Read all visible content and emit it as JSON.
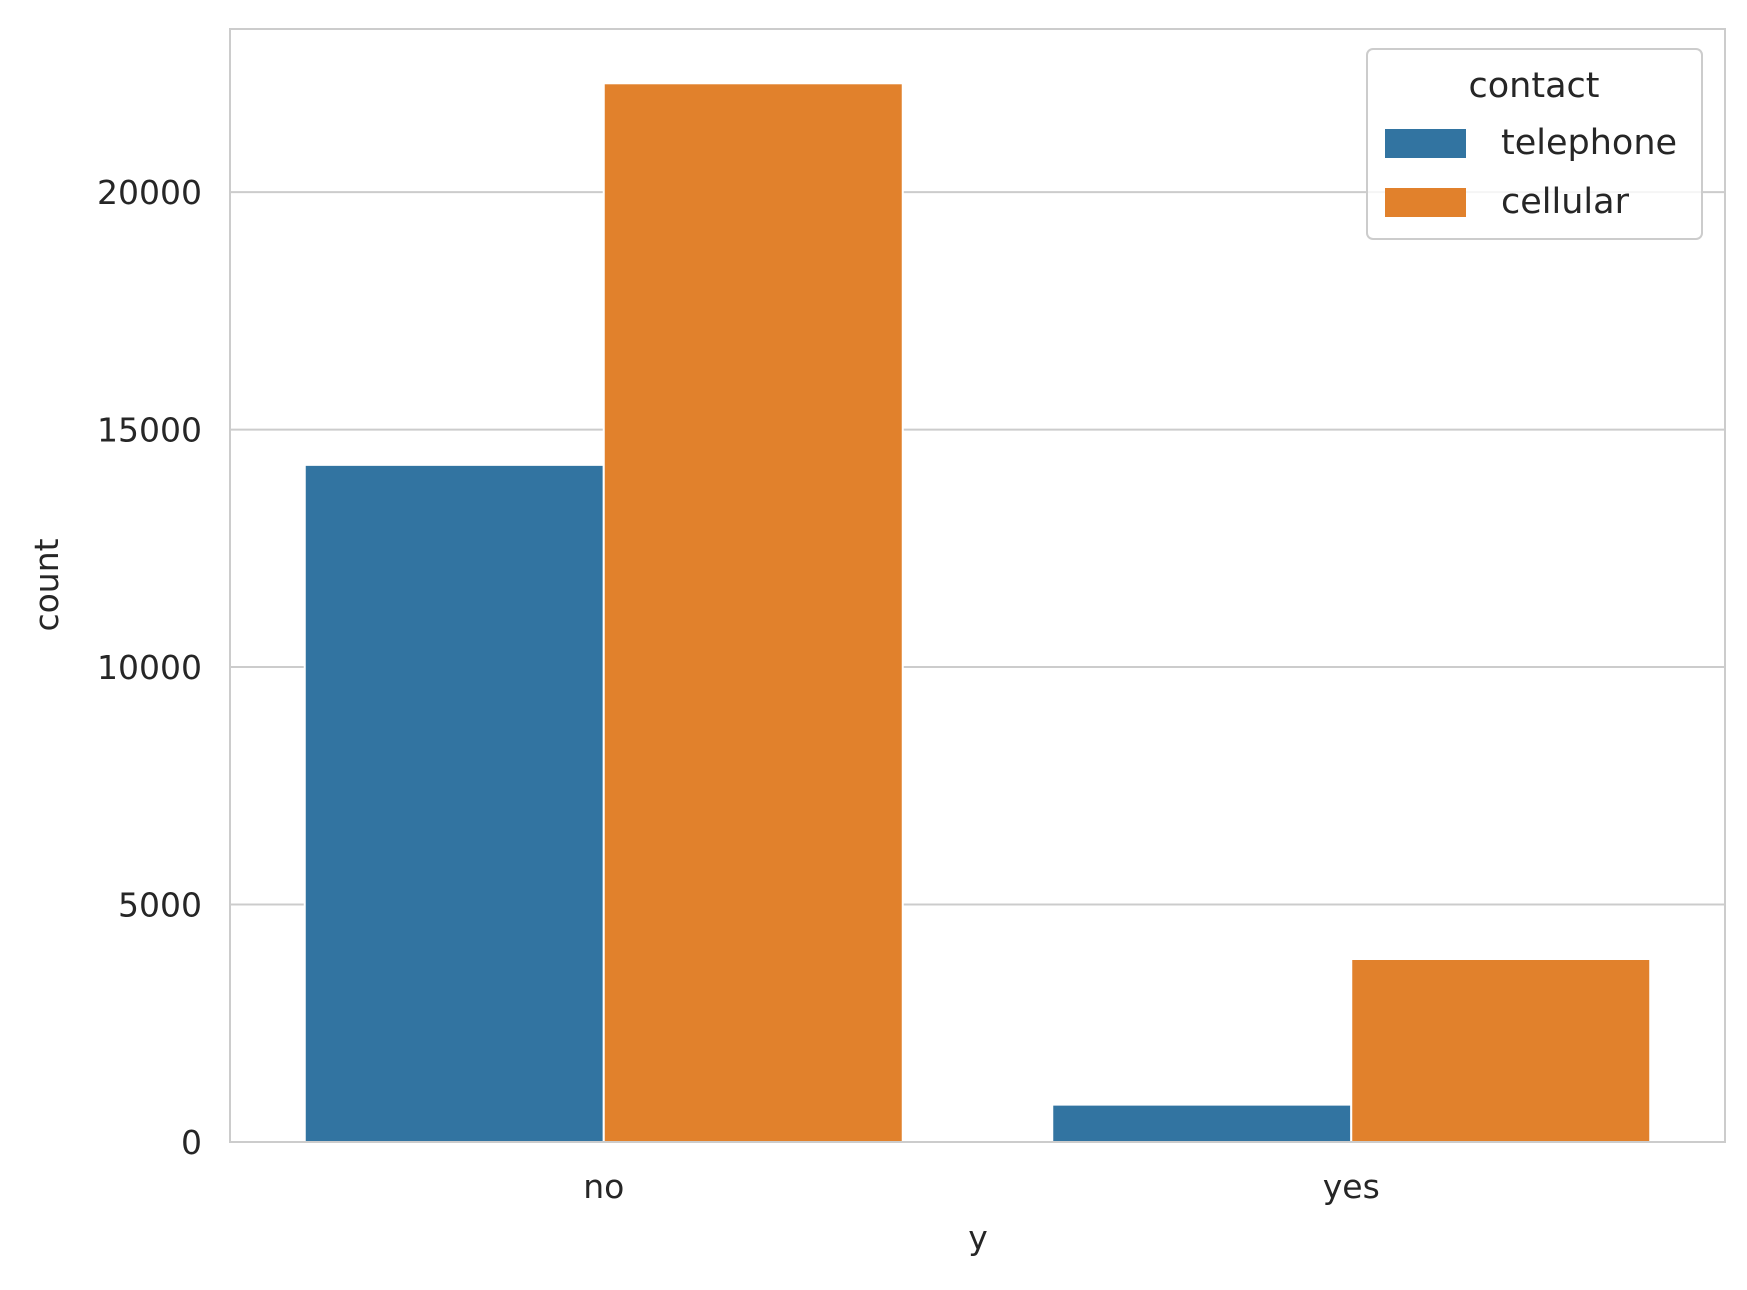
{
  "chart_data": {
    "type": "bar",
    "title": "",
    "xlabel": "y",
    "ylabel": "count",
    "categories": [
      "no",
      "yes"
    ],
    "series": [
      {
        "name": "telephone",
        "color": "#3274a1",
        "values": [
          14257,
          787
        ]
      },
      {
        "name": "cellular",
        "color": "#e1812c",
        "values": [
          22291,
          3853
        ]
      }
    ],
    "ylim": [
      0,
      23434
    ],
    "yticks": [
      0,
      5000,
      10000,
      15000,
      20000
    ],
    "ytick_labels": [
      "0",
      "5000",
      "10000",
      "15000",
      "20000"
    ],
    "grid": true,
    "legend": {
      "title": "contact",
      "placement": "top-right",
      "entries": [
        "telephone",
        "cellular"
      ]
    }
  }
}
